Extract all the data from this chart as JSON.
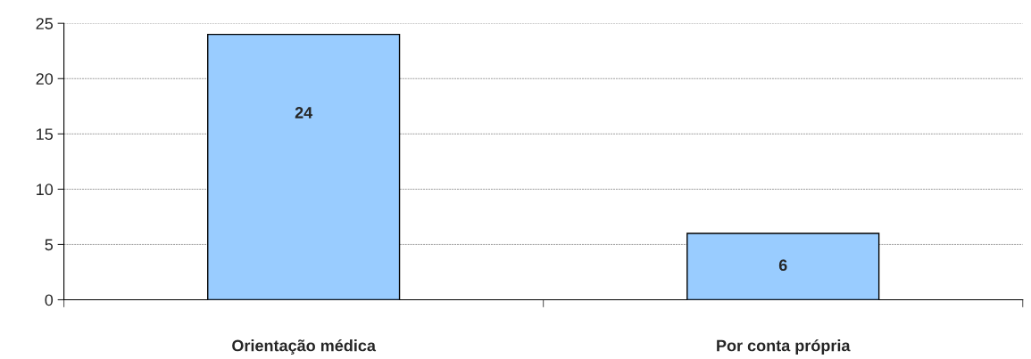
{
  "chart_data": {
    "type": "bar",
    "categories": [
      "Orientação médica",
      "Por conta própria"
    ],
    "values": [
      24,
      6
    ],
    "color": "#99ccff",
    "ylim": [
      0,
      25
    ],
    "yticks": [
      0,
      5,
      10,
      15,
      20,
      25
    ],
    "grid": "y",
    "data_labels": true,
    "legend": false
  }
}
